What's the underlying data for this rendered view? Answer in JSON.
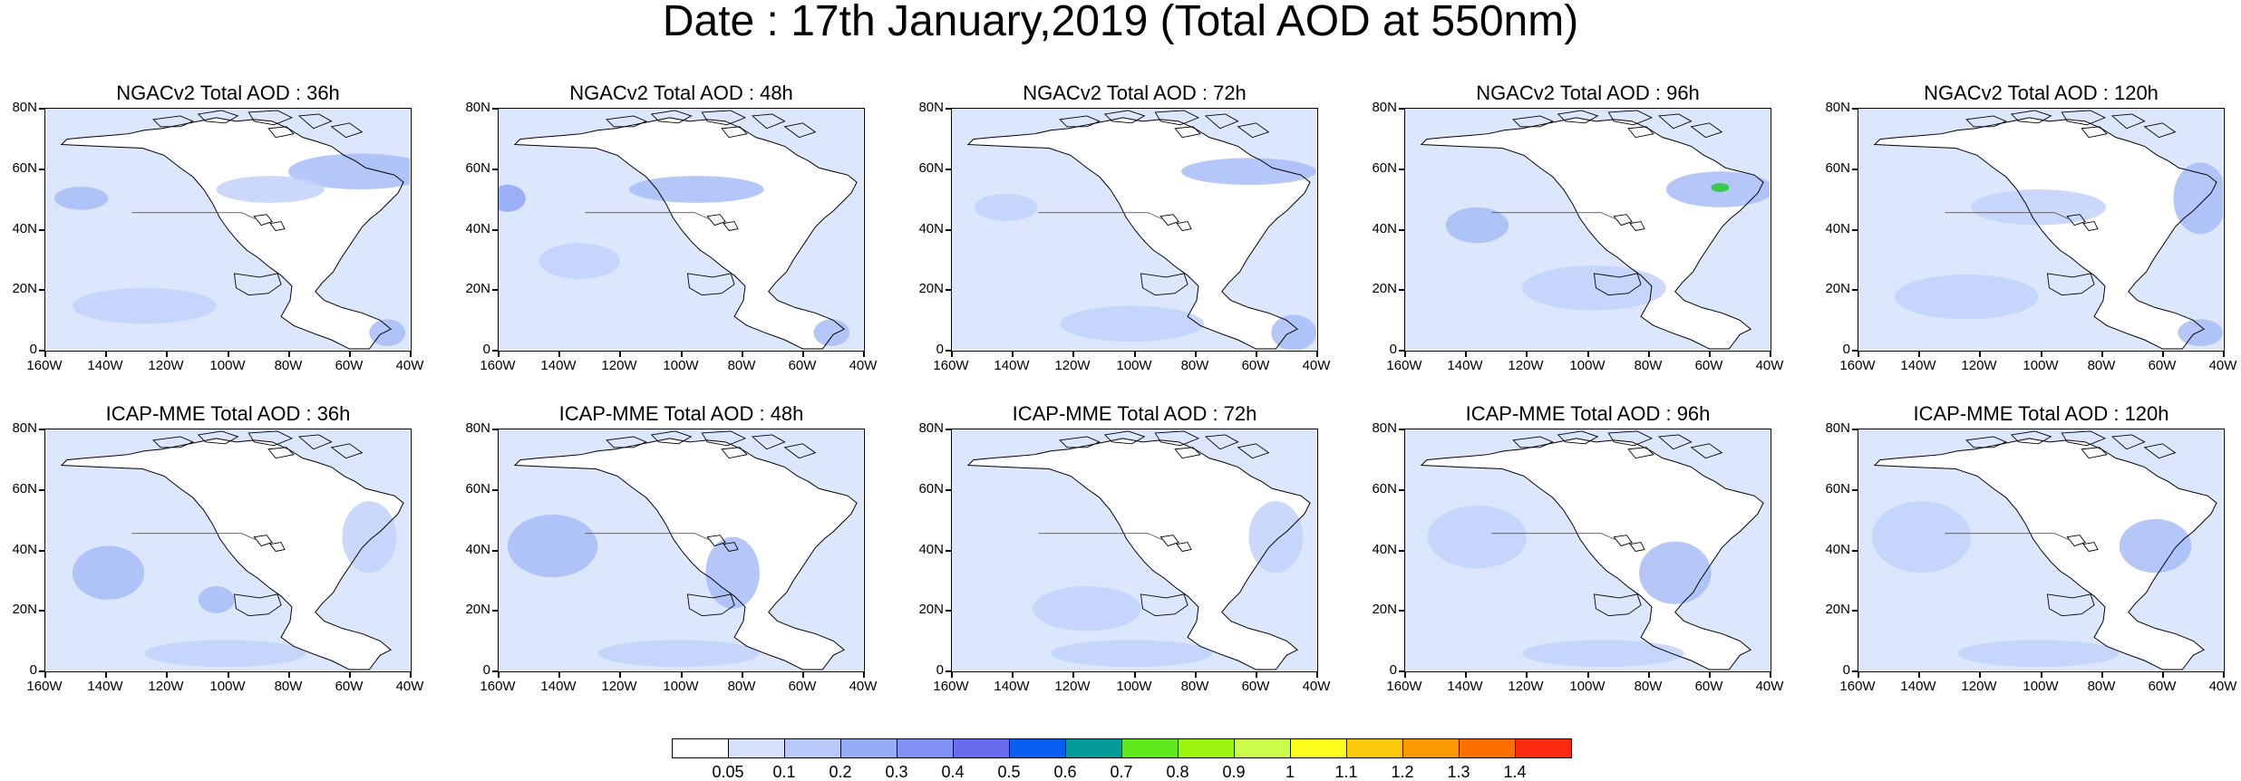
{
  "figure": {
    "title": "Date : 17th January,2019 (Total AOD at 550nm)"
  },
  "axes": {
    "lon_labels": [
      "160W",
      "140W",
      "120W",
      "100W",
      "80W",
      "60W",
      "40W"
    ],
    "lat_labels": [
      "80N",
      "60N",
      "40N",
      "20N",
      "0"
    ]
  },
  "panels": [
    {
      "id": "ngac-36",
      "title": "NGACv2 Total AOD : 36h",
      "model": "NGACv2",
      "lead": "36h"
    },
    {
      "id": "ngac-48",
      "title": "NGACv2 Total AOD : 48h",
      "model": "NGACv2",
      "lead": "48h"
    },
    {
      "id": "ngac-72",
      "title": "NGACv2 Total AOD : 72h",
      "model": "NGACv2",
      "lead": "72h"
    },
    {
      "id": "ngac-96",
      "title": "NGACv2 Total AOD : 96h",
      "model": "NGACv2",
      "lead": "96h"
    },
    {
      "id": "ngac-120",
      "title": "NGACv2 Total AOD : 120h",
      "model": "NGACv2",
      "lead": "120h"
    },
    {
      "id": "icap-36",
      "title": "ICAP-MME Total AOD : 36h",
      "model": "ICAP-MME",
      "lead": "36h"
    },
    {
      "id": "icap-48",
      "title": "ICAP-MME Total AOD : 48h",
      "model": "ICAP-MME",
      "lead": "48h"
    },
    {
      "id": "icap-72",
      "title": "ICAP-MME Total AOD : 72h",
      "model": "ICAP-MME",
      "lead": "72h"
    },
    {
      "id": "icap-96",
      "title": "ICAP-MME Total AOD : 96h",
      "model": "ICAP-MME",
      "lead": "96h"
    },
    {
      "id": "icap-120",
      "title": "ICAP-MME Total AOD : 120h",
      "model": "ICAP-MME",
      "lead": "120h"
    }
  ],
  "colorbar": {
    "labels": [
      "0.05",
      "0.1",
      "0.2",
      "0.3",
      "0.4",
      "0.5",
      "0.6",
      "0.7",
      "0.8",
      "0.9",
      "1",
      "1.1",
      "1.2",
      "1.3",
      "1.4"
    ],
    "colors": [
      "#ffffff",
      "#d7e1fc",
      "#b9c9fa",
      "#97acf6",
      "#8191f4",
      "#6a6cf0",
      "#0a5ef2",
      "#069b9b",
      "#5fe81c",
      "#9ef610",
      "#cdfb4c",
      "#fefe1c",
      "#fcc80b",
      "#fb9a00",
      "#fb7000",
      "#fb2a10"
    ]
  },
  "map_style": {
    "land_outline": "#000000",
    "field_base": "#dce6fd",
    "field_light": "#c2d1fb",
    "field_mid": "#a8bcf8",
    "field_strong": "#8ea4f4",
    "field_peak": "#38c850"
  }
}
